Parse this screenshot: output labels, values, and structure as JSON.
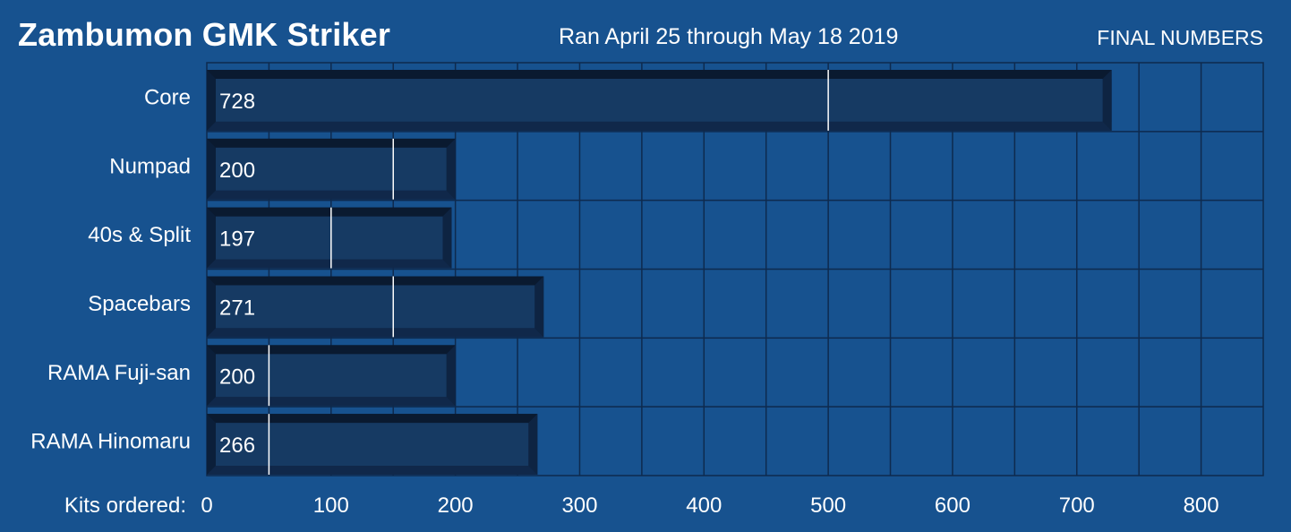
{
  "header": {
    "title": "Zambumon GMK Striker",
    "subtitle": "Ran April 25 through May 18 2019",
    "status": "FINAL NUMBERS"
  },
  "colors": {
    "background": "#17528f",
    "bar": "#163a63",
    "bar_edge": "#0b1f3a",
    "grid": "#0e2a4e",
    "marker": "#ffffff"
  },
  "chart_data": {
    "type": "bar",
    "orientation": "horizontal",
    "categories": [
      "Core",
      "Numpad",
      "40s & Split",
      "Spacebars",
      "RAMA Fuji-san",
      "RAMA Hinomaru"
    ],
    "values": [
      728,
      200,
      197,
      271,
      200,
      266
    ],
    "value_labels": [
      "728",
      "200",
      "197",
      "271",
      "200",
      "266"
    ],
    "markers": [
      500,
      150,
      100,
      150,
      50,
      50
    ],
    "xlabel": "Kits ordered:",
    "xlim": [
      0,
      850
    ],
    "xticks": [
      0,
      100,
      200,
      300,
      400,
      500,
      600,
      700,
      800
    ],
    "xtick_labels": [
      "0",
      "100",
      "200",
      "300",
      "400",
      "500",
      "600",
      "700",
      "800"
    ],
    "grid_step": 50,
    "grid": true
  }
}
